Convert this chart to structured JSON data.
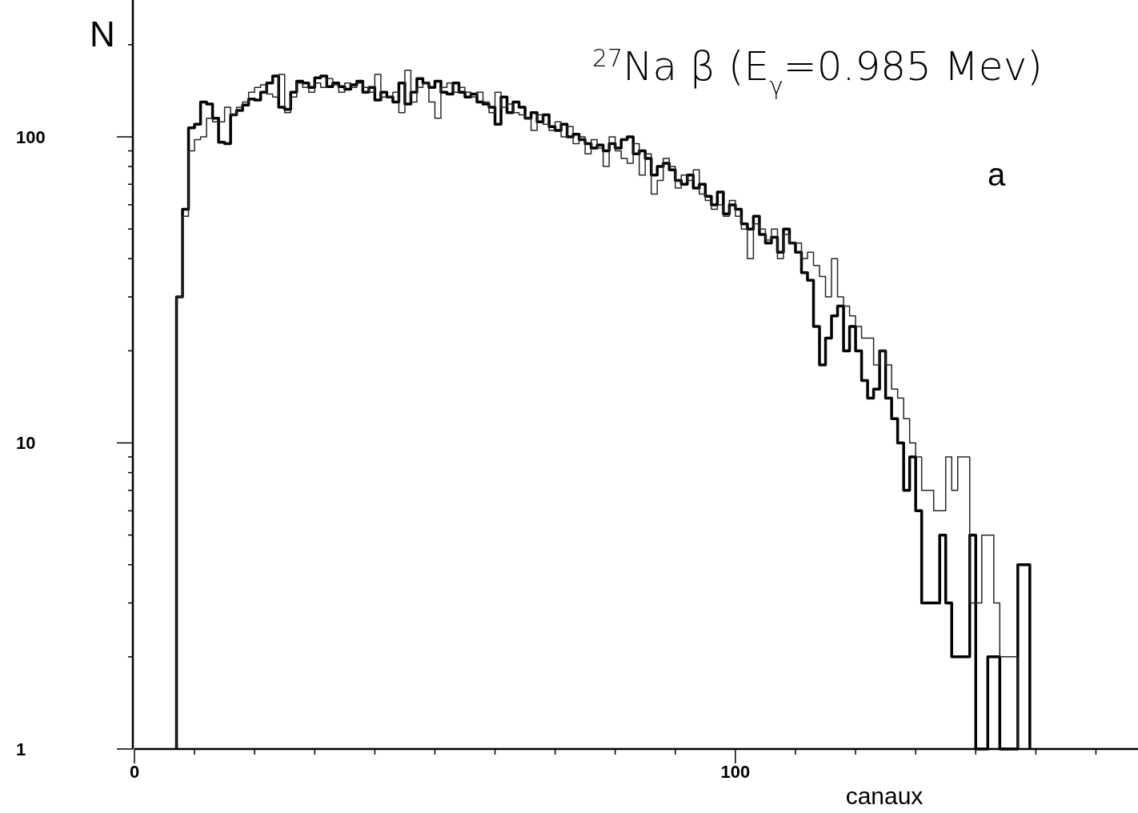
{
  "chart_data": {
    "type": "histogram",
    "title": "$^{27}$Na β (E$_{γ}$=0.985 Mev)",
    "xlabel": "canaux",
    "ylabel": "N",
    "annotations": [
      "a"
    ],
    "log": "y",
    "grid": false,
    "bins": [
      7,
      8,
      9,
      10,
      11,
      12,
      13,
      14,
      15,
      16,
      17,
      18,
      19,
      20,
      21,
      22,
      23,
      24,
      25,
      26,
      27,
      28,
      29,
      30,
      31,
      32,
      33,
      34,
      35,
      36,
      37,
      38,
      39,
      40,
      41,
      42,
      43,
      44,
      45,
      46,
      47,
      48,
      49,
      50,
      51,
      52,
      53,
      54,
      55,
      56,
      57,
      58,
      59,
      60,
      61,
      62,
      63,
      64,
      65,
      66,
      67,
      68,
      69,
      70,
      71,
      72,
      73,
      74,
      75,
      76,
      77,
      78,
      79,
      80,
      81,
      82,
      83,
      84,
      85,
      86,
      87,
      88,
      89,
      90,
      91,
      92,
      93,
      94,
      95,
      96,
      97,
      98,
      99,
      100,
      101,
      102,
      103,
      104,
      105,
      106,
      107,
      108,
      109,
      110,
      111,
      112,
      113,
      114,
      115,
      116,
      117,
      118,
      119,
      120,
      121,
      122,
      123,
      124,
      125,
      126,
      127,
      128,
      129,
      130,
      131,
      132,
      133,
      134,
      135,
      136,
      137,
      138,
      139,
      140,
      141,
      142,
      143,
      144,
      145,
      146,
      147,
      148,
      149
    ],
    "series": [
      {
        "color": "#000000",
        "values": [
          30,
          58,
          107,
          110,
          130,
          128,
          115,
          96,
          95,
          118,
          122,
          127,
          133,
          132,
          140,
          150,
          158,
          125,
          123,
          140,
          152,
          150,
          145,
          156,
          158,
          146,
          150,
          146,
          143,
          148,
          152,
          140,
          145,
          132,
          140,
          135,
          130,
          150,
          128,
          140,
          155,
          150,
          145,
          152,
          140,
          138,
          150,
          140,
          135,
          138,
          130,
          128,
          125,
          110,
          135,
          120,
          130,
          125,
          115,
          120,
          112,
          118,
          108,
          105,
          110,
          100,
          102,
          98,
          95,
          92,
          94,
          90,
          95,
          92,
          98,
          100,
          88,
          90,
          85,
          75,
          80,
          82,
          78,
          72,
          70,
          75,
          68,
          70,
          64,
          60,
          66,
          56,
          60,
          58,
          52,
          50,
          55,
          48,
          45,
          47,
          42,
          50,
          45,
          42,
          36,
          34,
          24,
          18,
          22,
          26,
          28,
          20,
          24,
          20,
          16,
          14,
          15,
          20,
          14,
          12,
          10,
          7,
          9,
          6,
          3,
          3,
          3,
          5,
          3,
          2,
          2,
          2,
          5,
          1,
          1,
          2,
          2,
          1,
          1,
          1,
          4,
          4
        ]
      },
      {
        "color": "#262626",
        "values": [
          30,
          55,
          90,
          98,
          100,
          115,
          112,
          112,
          125,
          118,
          125,
          130,
          140,
          145,
          148,
          138,
          135,
          160,
          120,
          135,
          150,
          145,
          140,
          150,
          145,
          155,
          148,
          140,
          150,
          145,
          150,
          145,
          140,
          160,
          135,
          135,
          140,
          120,
          165,
          130,
          145,
          150,
          130,
          115,
          145,
          150,
          140,
          145,
          140,
          135,
          140,
          130,
          120,
          140,
          125,
          128,
          120,
          118,
          115,
          105,
          118,
          110,
          105,
          112,
          100,
          108,
          95,
          100,
          88,
          98,
          92,
          80,
          100,
          90,
          85,
          82,
          95,
          75,
          88,
          65,
          72,
          85,
          80,
          68,
          75,
          72,
          78,
          65,
          62,
          58,
          60,
          55,
          62,
          55,
          50,
          40,
          52,
          50,
          46,
          50,
          40,
          48,
          45,
          45,
          40,
          42,
          38,
          35,
          30,
          40,
          30,
          28,
          26,
          24,
          22,
          22,
          18,
          20,
          18,
          15,
          14,
          12,
          10,
          9,
          7,
          7,
          6,
          6,
          9,
          7,
          9,
          9,
          3,
          3,
          5,
          5,
          3,
          2,
          2,
          2,
          1,
          1
        ]
      }
    ],
    "xlim": [
      0,
      167
    ],
    "xticks": [
      0,
      {
        "value": 10,
        "label": null
      },
      {
        "value": 20,
        "label": null
      },
      {
        "value": 30,
        "label": null
      },
      {
        "value": 40,
        "label": null
      },
      {
        "value": 50,
        "label": null
      },
      {
        "value": 60,
        "label": null
      },
      {
        "value": 70,
        "label": null
      },
      {
        "value": 80,
        "label": null
      },
      {
        "value": 90,
        "label": null
      },
      100,
      {
        "value": 110,
        "label": null
      },
      {
        "value": 120,
        "label": null
      },
      {
        "value": 130,
        "label": null
      },
      {
        "value": 140,
        "label": null
      },
      {
        "value": 150,
        "label": null
      },
      {
        "value": 160,
        "label": null
      }
    ],
    "ylim": [
      1,
      280
    ],
    "yticks": [
      1,
      {
        "value": 2,
        "label": null
      },
      {
        "value": 3,
        "label": null
      },
      {
        "value": 4,
        "label": null
      },
      {
        "value": 5,
        "label": null
      },
      {
        "value": 6,
        "label": null
      },
      {
        "value": 7,
        "label": null
      },
      {
        "value": 8,
        "label": null
      },
      {
        "value": 9,
        "label": null
      },
      10,
      {
        "value": 20,
        "label": null
      },
      {
        "value": 30,
        "label": null
      },
      {
        "value": 40,
        "label": null
      },
      {
        "value": 50,
        "label": null
      },
      {
        "value": 60,
        "label": null
      },
      {
        "value": 70,
        "label": null
      },
      {
        "value": 80,
        "label": null
      },
      {
        "value": 90,
        "label": null
      },
      100,
      {
        "value": 200,
        "label": null
      }
    ]
  }
}
